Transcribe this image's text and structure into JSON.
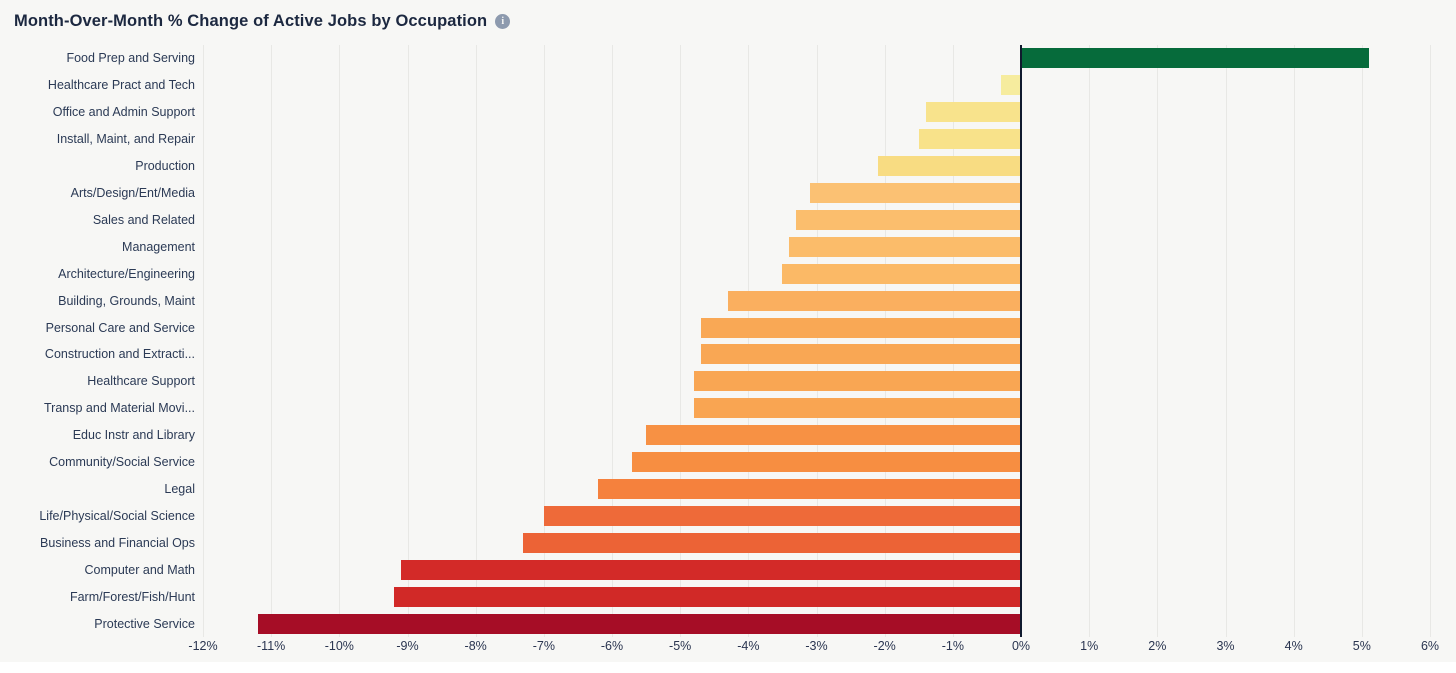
{
  "header": {
    "title": "Month-Over-Month % Change of Active Jobs by Occupation",
    "info_icon_glyph": "i"
  },
  "colors": {
    "card_background": "#F7F7F5",
    "page_background": "#FFFFFF",
    "title_text": "#1C2840",
    "label_text": "#2B3A55",
    "gridline": "#E8E8E5",
    "zero_line": "#101A2E",
    "info_icon_background": "#8D9AAE"
  },
  "chart_data": {
    "type": "bar",
    "orientation": "horizontal",
    "title": "Month-Over-Month % Change of Active Jobs by Occupation",
    "xlabel": "",
    "ylabel": "",
    "x_unit": "%",
    "xlim": [
      -12,
      6
    ],
    "x_ticks": [
      -12,
      -11,
      -10,
      -9,
      -8,
      -7,
      -6,
      -5,
      -4,
      -3,
      -2,
      -1,
      0,
      1,
      2,
      3,
      4,
      5,
      6
    ],
    "x_tick_labels": [
      "-12%",
      "-11%",
      "-10%",
      "-9%",
      "-8%",
      "-7%",
      "-6%",
      "-5%",
      "-4%",
      "-3%",
      "-2%",
      "-1%",
      "0%",
      "1%",
      "2%",
      "3%",
      "4%",
      "5%",
      "6%"
    ],
    "grid": true,
    "legend": false,
    "categories": [
      "Food Prep and Serving",
      "Healthcare Pract and Tech",
      "Office and Admin Support",
      "Install, Maint, and Repair",
      "Production",
      "Arts/Design/Ent/Media",
      "Sales and Related",
      "Management",
      "Architecture/Engineering",
      "Building, Grounds, Maint",
      "Personal Care and Service",
      "Construction and Extracti...",
      "Healthcare Support",
      "Transp and Material Movi...",
      "Educ Instr and Library",
      "Community/Social Service",
      "Legal",
      "Life/Physical/Social Science",
      "Business and Financial Ops",
      "Computer and Math",
      "Farm/Forest/Fish/Hunt",
      "Protective Service"
    ],
    "values": [
      5.1,
      -0.3,
      -1.4,
      -1.5,
      -2.1,
      -3.1,
      -3.3,
      -3.4,
      -3.5,
      -4.3,
      -4.7,
      -4.7,
      -4.8,
      -4.8,
      -5.5,
      -5.7,
      -6.2,
      -7.0,
      -7.3,
      -9.1,
      -9.2,
      -11.2
    ],
    "bar_colors": [
      "#066B3B",
      "#F6EC9E",
      "#F8E38C",
      "#F8E28A",
      "#F8DC82",
      "#FBC173",
      "#FBBE6D",
      "#FBBC6A",
      "#FBB966",
      "#FAAF5F",
      "#F9A855",
      "#F9A754",
      "#F9A653",
      "#F9A552",
      "#F79144",
      "#F78E41",
      "#F5813D",
      "#EE6A39",
      "#EC6336",
      "#D32A28",
      "#D12927",
      "#A60D26"
    ]
  }
}
